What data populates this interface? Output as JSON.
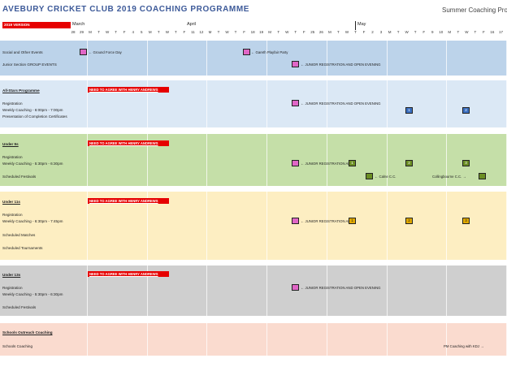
{
  "header": {
    "title": "AVEBURY CRICKET CLUB 2019 COACHING PROGRAMME",
    "subtitle": "Summer Coaching Progra",
    "version": "2019 VERSION"
  },
  "timeline": {
    "months": [
      "March",
      "April",
      "May"
    ],
    "days": [
      "28",
      "29",
      "M",
      "T",
      "W",
      "T",
      "F",
      "4",
      "5",
      "M",
      "T",
      "W",
      "T",
      "F",
      "11",
      "12",
      "M",
      "T",
      "W",
      "T",
      "F",
      "18",
      "19",
      "M",
      "T",
      "W",
      "T",
      "F",
      "25",
      "26",
      "M",
      "T",
      "W",
      "T",
      "F",
      "2",
      "3",
      "M",
      "T",
      "W",
      "T",
      "F",
      "9",
      "10",
      "M",
      "T",
      "W",
      "T",
      "F",
      "16",
      "17"
    ]
  },
  "colors": {
    "social": "#bcd3ea",
    "allstars": "#dbe8f5",
    "under9": "#c5dfa8",
    "under11": "#fdeec2",
    "under13": "#cfcfcf",
    "schools": "#fadbcf",
    "accent_red": "#e60000"
  },
  "sections": {
    "social": {
      "rows": [
        "Social and Other Events",
        "Junior Section GROUP EVENTS"
      ],
      "events": [
        "← Ground Force Day",
        "← Gareth Playfair Party",
        "← JUNIOR REGISTRATION AND OPEN EVENING"
      ]
    },
    "allstars": {
      "rows": [
        "All-Stars Programme",
        "Registration",
        "Weekly Coaching - 6:00pm - 7:00pm",
        "Presentation of Completion Certificates"
      ],
      "bar": "NEED TO AGREE WITH HENRY ANDREWS",
      "events": [
        "← JUNIOR REGISTRATION AND OPEN EVENING"
      ],
      "weeks": [
        "1",
        "2"
      ]
    },
    "under9": {
      "rows": [
        "Under 9s",
        "Registration",
        "Weekly Coaching - 5:30pm - 6:30pm",
        "Scheduled Festivals"
      ],
      "bar": "NEED TO AGREE WITH HENRY ANDREWS",
      "events": [
        "← JUNIOR REGISTRATION AND",
        "← Calne C.C.",
        "Collingbourne C.C. →"
      ],
      "weeks": [
        "1",
        "2",
        "3"
      ]
    },
    "under11": {
      "rows": [
        "Under 11s",
        "Registration",
        "Weekly Coaching - 6:30pm - 7:45pm",
        "Scheduled Matches",
        "Scheduled Tournaments"
      ],
      "bar": "NEED TO AGREE WITH HENRY ANDREWS",
      "events": [
        "← JUNIOR REGISTRATION AND"
      ],
      "weeks": [
        "1",
        "2",
        "3"
      ]
    },
    "under13": {
      "rows": [
        "Under 13s",
        "Registration",
        "Weekly Coaching - 5:30pm - 6:30pm",
        "Scheduled Festivals"
      ],
      "bar": "NEED TO AGREE WITH HENRY ANDREWS",
      "events": [
        "← JUNIOR REGISTRATION AND OPEN EVENING"
      ]
    },
    "schools": {
      "rows": [
        "Schools Outreach Coaching",
        "Schools Coaching"
      ],
      "events": [
        "PM Coaching with KDJ →"
      ]
    }
  }
}
